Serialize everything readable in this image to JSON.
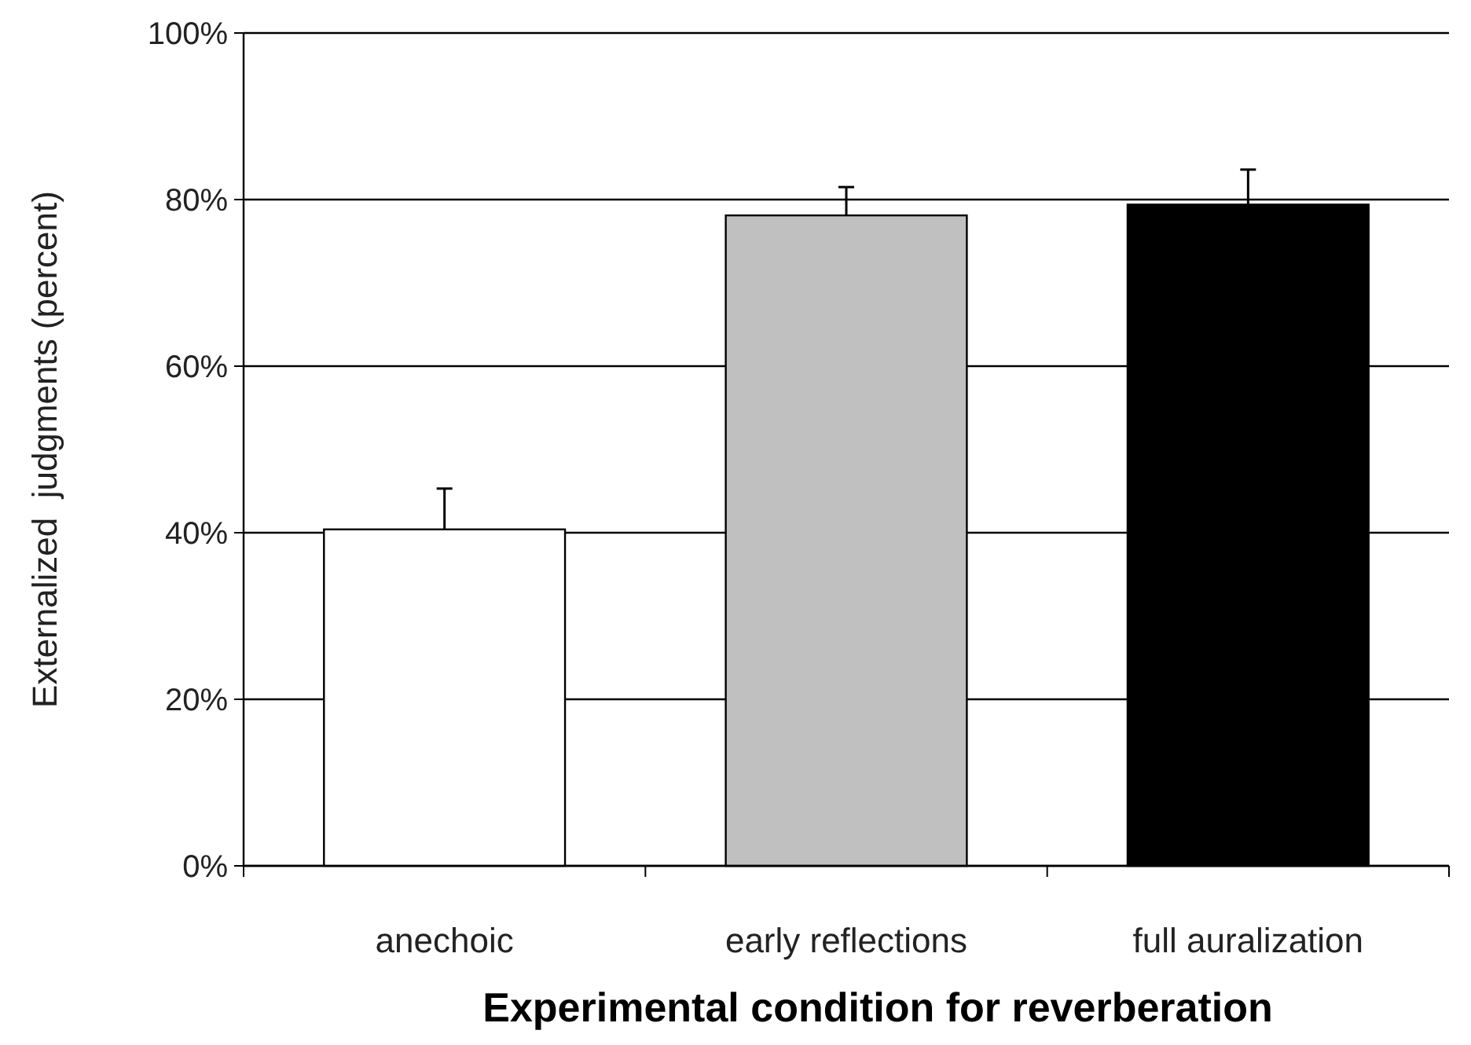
{
  "chart_data": {
    "type": "bar",
    "xlabel": "Experimental condition for reverberation",
    "ylabel": "Externalized  judgments (percent)",
    "categories": [
      "anechoic",
      "early reflections",
      "full auralization"
    ],
    "values": [
      40.4,
      78.1,
      79.4
    ],
    "colors": [
      "#ffffff",
      "#c0c0c0",
      "#000000"
    ],
    "errors": [
      4.9,
      3.4,
      4.2
    ],
    "ylim": [
      0,
      100
    ],
    "yticks": [
      {
        "value": 0,
        "label": "0%"
      },
      {
        "value": 20,
        "label": "20%"
      },
      {
        "value": 40,
        "label": "40%"
      },
      {
        "value": 60,
        "label": "60%"
      },
      {
        "value": 80,
        "label": "80%"
      },
      {
        "value": 100,
        "label": "100%"
      }
    ],
    "grid": "y"
  }
}
